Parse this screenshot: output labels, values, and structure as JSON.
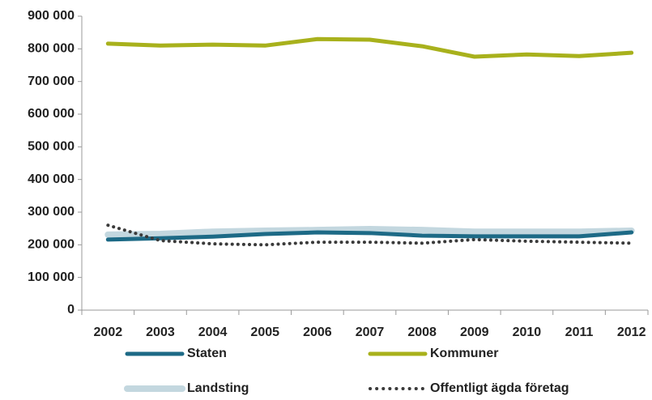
{
  "chart_data": {
    "type": "line",
    "categories": [
      "2002",
      "2003",
      "2004",
      "2005",
      "2006",
      "2007",
      "2008",
      "2009",
      "2010",
      "2011",
      "2012"
    ],
    "series": [
      {
        "name": "Staten",
        "color": "#1d6a86",
        "values": [
          216000,
          220000,
          225000,
          233000,
          238000,
          236000,
          228000,
          226000,
          226000,
          226000,
          238000
        ]
      },
      {
        "name": "Kommuner",
        "color": "#a8b11c",
        "values": [
          816000,
          810000,
          813000,
          810000,
          830000,
          828000,
          808000,
          776000,
          783000,
          778000,
          788000
        ]
      },
      {
        "name": "Landsting",
        "color": "#c3d7df",
        "values": [
          231000,
          233000,
          240000,
          243000,
          245000,
          248000,
          245000,
          240000,
          240000,
          240000,
          243000
        ]
      },
      {
        "name": "Offentligt ägda företag",
        "color": "#3a3a3a",
        "dotted": true,
        "values": [
          260000,
          213000,
          203000,
          200000,
          208000,
          208000,
          205000,
          216000,
          211000,
          208000,
          205000
        ]
      }
    ],
    "ylim": [
      0,
      900000
    ],
    "yticks": [
      0,
      {
        "value": 100000,
        "label": "100 000"
      },
      {
        "value": 200000,
        "label": "200 000"
      },
      {
        "value": 300000,
        "label": "300 000"
      },
      {
        "value": 400000,
        "label": "400 000"
      },
      {
        "value": 500000,
        "label": "500 000"
      },
      {
        "value": 600000,
        "label": "600 000"
      },
      {
        "value": 700000,
        "label": "700 000"
      },
      {
        "value": 800000,
        "label": "800 000"
      },
      {
        "value": 900000,
        "label": "900 000"
      }
    ],
    "legend": "bottom"
  }
}
